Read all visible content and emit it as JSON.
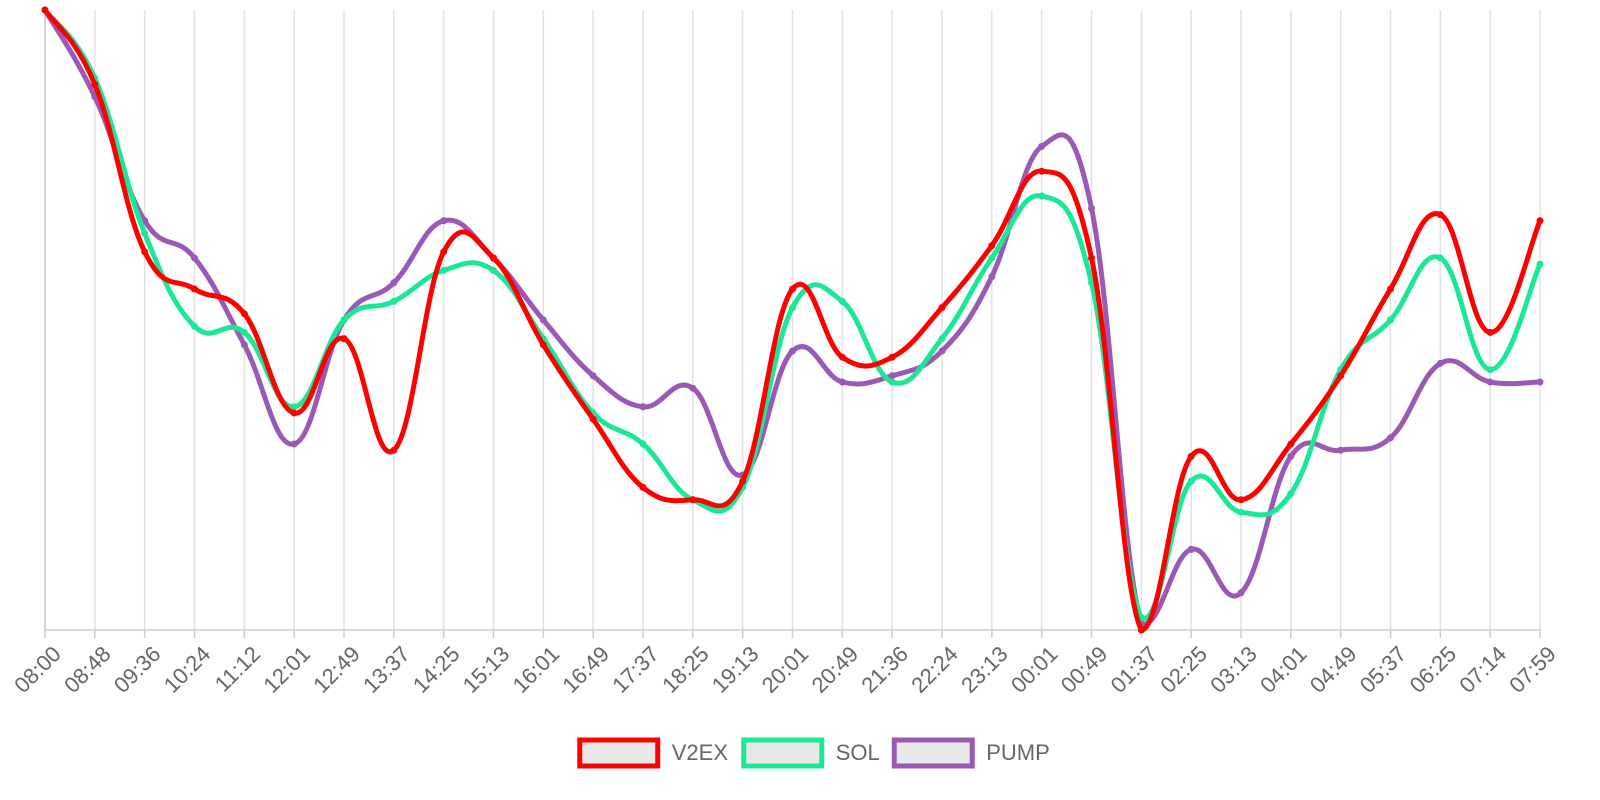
{
  "chart_data": {
    "type": "line",
    "x": [
      "08:00",
      "08:48",
      "09:36",
      "10:24",
      "11:12",
      "12:01",
      "12:49",
      "13:37",
      "14:25",
      "15:13",
      "16:01",
      "16:49",
      "17:37",
      "18:25",
      "19:13",
      "20:01",
      "20:49",
      "21:36",
      "22:24",
      "23:13",
      "00:01",
      "00:49",
      "01:37",
      "02:25",
      "03:13",
      "04:01",
      "04:49",
      "05:37",
      "06:25",
      "07:14",
      "07:59"
    ],
    "ylim": [
      0,
      100
    ],
    "grid": {
      "vertical": true,
      "horizontal": false
    },
    "legend_position": "bottom",
    "series": [
      {
        "name": "V2EX",
        "color": "#ff0000",
        "values": [
          100,
          88,
          61,
          55,
          51,
          35,
          47,
          29,
          61,
          60,
          46,
          34,
          23,
          21,
          24,
          55,
          44,
          44,
          52,
          62,
          74,
          60,
          0,
          28,
          21,
          30,
          41,
          55,
          67,
          48,
          66
        ]
      },
      {
        "name": "SOL",
        "color": "#1be897",
        "values": [
          100,
          89,
          64,
          49,
          48,
          36,
          50,
          53,
          58,
          58,
          47,
          35,
          30,
          21,
          23,
          52,
          53,
          40,
          47,
          60,
          70,
          56,
          2,
          24,
          19,
          22,
          42,
          50,
          60,
          42,
          59
        ]
      },
      {
        "name": "PUMP",
        "color": "#9b59b6",
        "values": [
          100,
          86,
          66,
          60,
          46,
          30,
          50,
          56,
          66,
          60,
          50,
          41,
          36,
          39,
          25,
          45,
          40,
          41,
          45,
          57,
          78,
          68,
          1,
          13,
          6,
          28,
          29,
          31,
          43,
          40,
          40
        ]
      }
    ]
  }
}
